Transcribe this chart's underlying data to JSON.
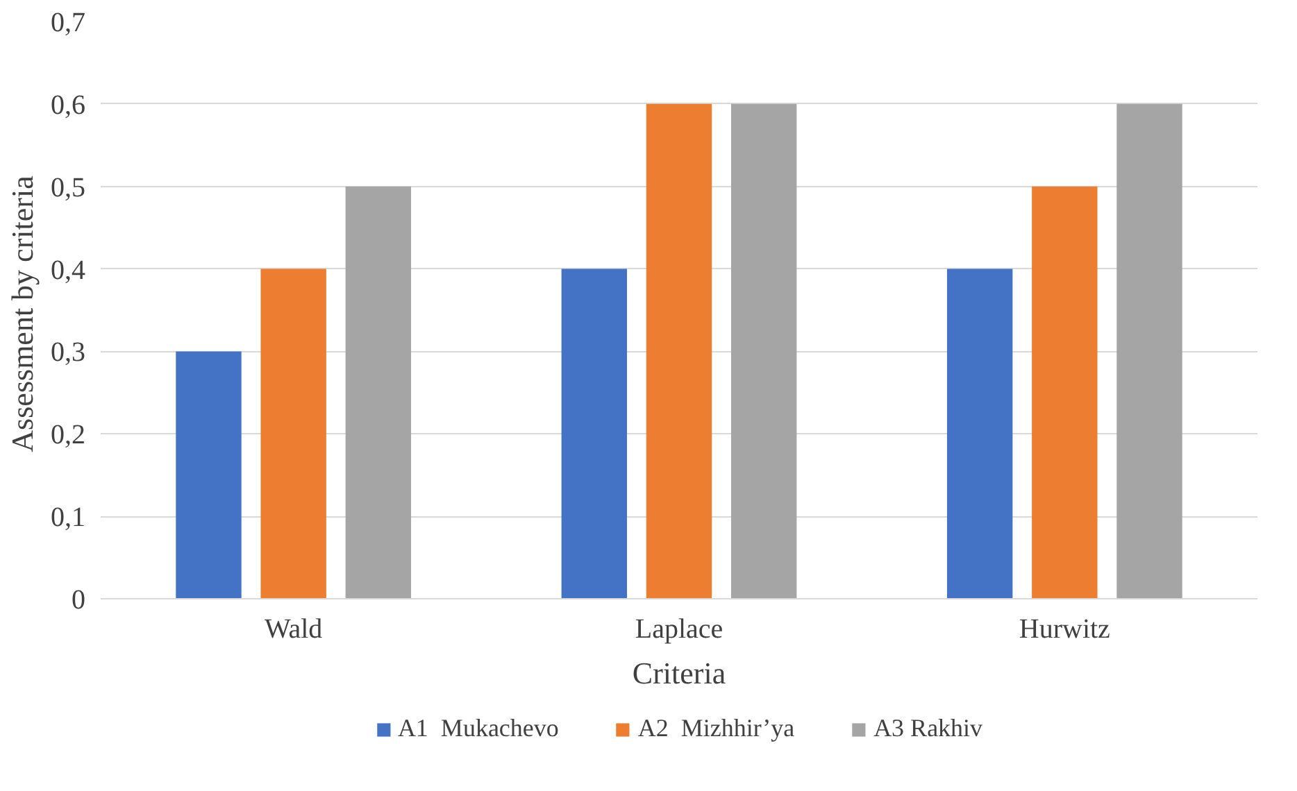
{
  "chart_data": {
    "type": "bar",
    "xlabel": "Criteria",
    "ylabel": "Assessment  by criteria",
    "categories": [
      "Wald",
      "Laplace",
      "Hurwitz"
    ],
    "series": [
      {
        "name": "A1  Mukachevo",
        "color": "#4472c4",
        "values": [
          0.3,
          0.4,
          0.4
        ]
      },
      {
        "name": "A2  Mizhhir’ya",
        "color": "#ed7d31",
        "values": [
          0.4,
          0.6,
          0.5
        ]
      },
      {
        "name": "A3 Rakhiv",
        "color": "#a5a5a5",
        "values": [
          0.5,
          0.6,
          0.6
        ]
      }
    ],
    "ylim": [
      0,
      0.7
    ],
    "yticks": [
      0,
      {
        "value": 0.1,
        "label": "0,1"
      },
      {
        "value": 0.2,
        "label": "0,2"
      },
      {
        "value": 0.3,
        "label": "0,3"
      },
      {
        "value": 0.4,
        "label": "0,4"
      },
      {
        "value": 0.5,
        "label": "0,5"
      },
      {
        "value": 0.6,
        "label": "0,6"
      },
      {
        "value": 0.7,
        "label": "0,7"
      }
    ],
    "grid": "y",
    "legend": "bottom"
  }
}
